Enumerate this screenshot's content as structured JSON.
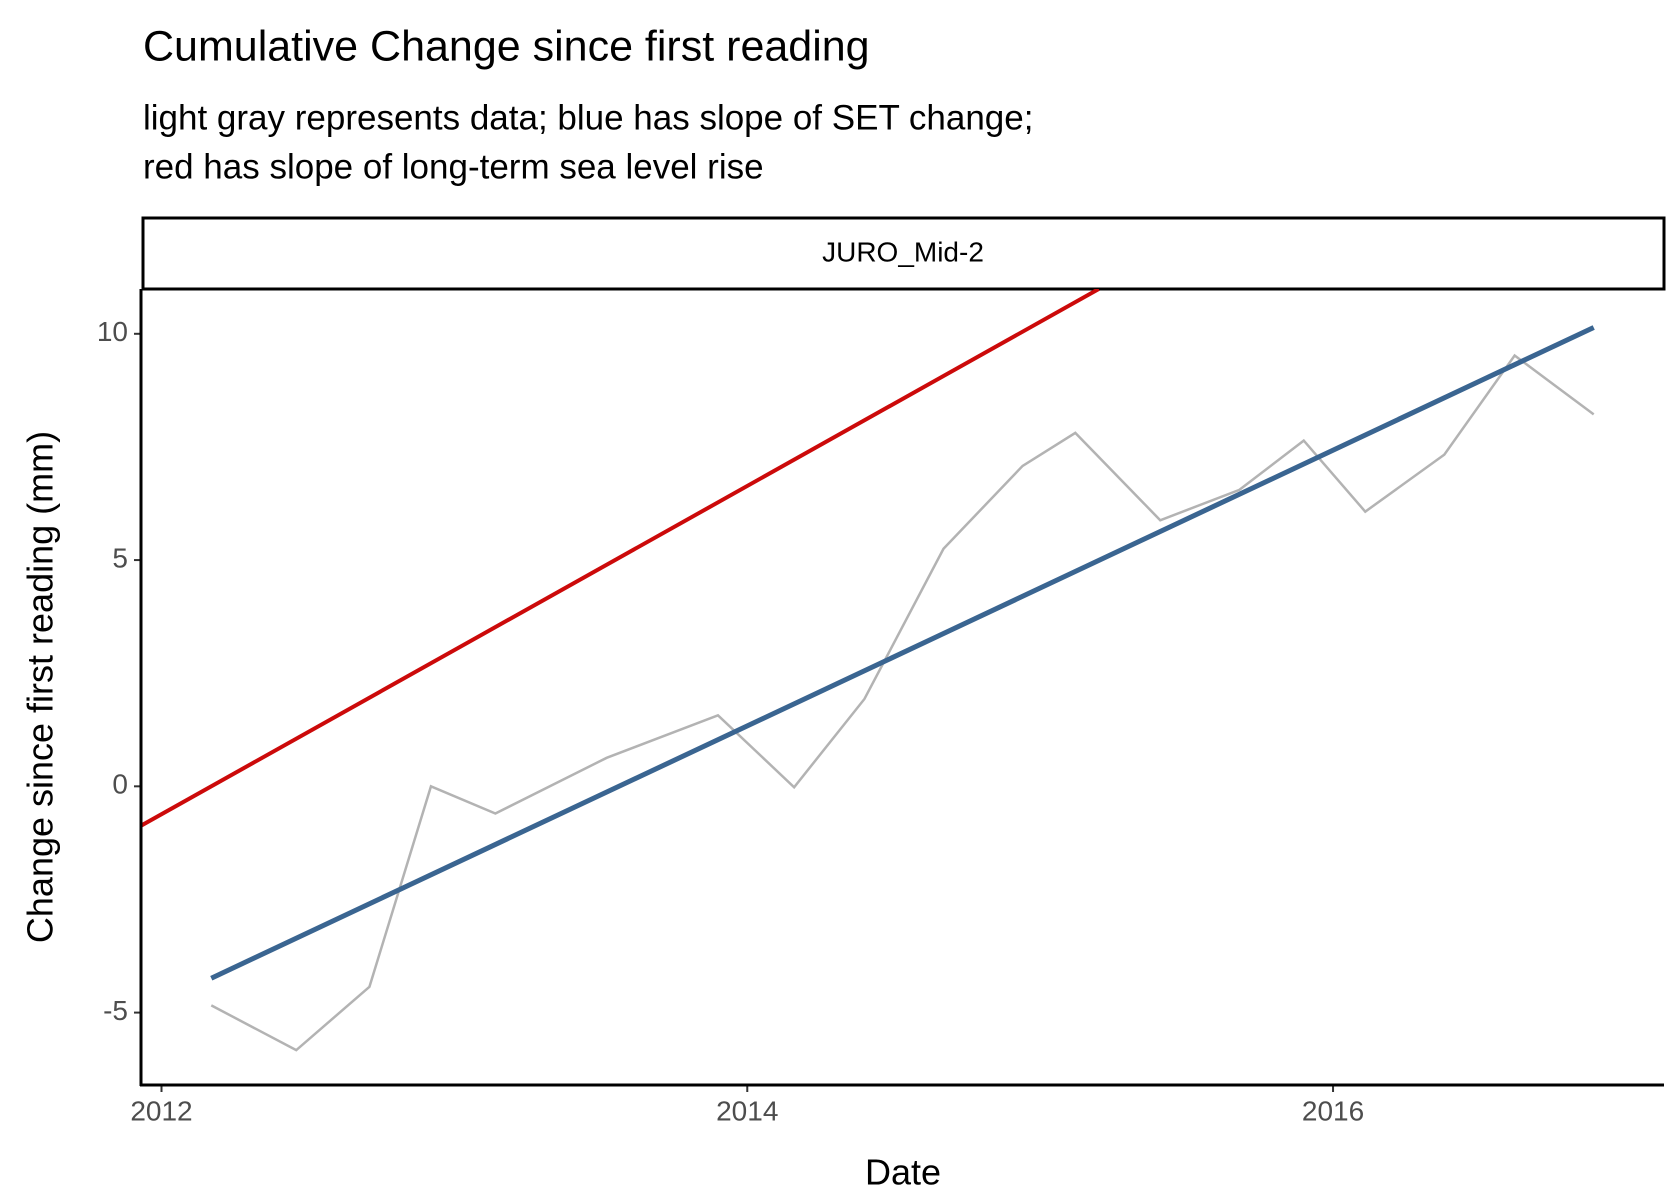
{
  "chart_data": {
    "type": "line",
    "title": "Cumulative Change since first reading",
    "subtitle": [
      "light gray represents data; blue has slope of SET change;",
      "red has slope of long-term sea level rise"
    ],
    "panel": "JURO_Mid-2",
    "x_label": "Date",
    "y_label": "Change since first reading (mm)",
    "xlim": [
      2011.93,
      2017.13
    ],
    "xticks": [
      2012,
      2014,
      2016
    ],
    "ylim": [
      -6.6,
      10.99
    ],
    "yticks": [
      -5,
      0,
      5,
      10
    ],
    "grid": false,
    "series": [
      {
        "color": "#b3b3b3",
        "width": 2.5,
        "x": [
          2012.17,
          2012.46,
          2012.71,
          2012.92,
          2013.14,
          2013.52,
          2013.9,
          2014.16,
          2014.4,
          2014.67,
          2014.94,
          2015.12,
          2015.41,
          2015.68,
          2015.9,
          2016.11,
          2016.38,
          2016.62,
          2016.89
        ],
        "values": [
          -4.84,
          -5.83,
          -4.43,
          0,
          -0.6,
          0.63,
          1.57,
          -0.02,
          1.93,
          5.25,
          7.08,
          7.81,
          5.88,
          6.55,
          7.64,
          6.07,
          7.33,
          9.52,
          8.22
        ]
      },
      {
        "color": "#3a6591",
        "width": 5,
        "x": [
          2012.17,
          2016.89
        ],
        "values": [
          -4.24,
          10.14
        ]
      },
      {
        "color": "#cc0a0a",
        "width": 4,
        "x": [
          2011.93,
          2015.2
        ],
        "values": [
          -0.87,
          10.99
        ]
      }
    ]
  }
}
